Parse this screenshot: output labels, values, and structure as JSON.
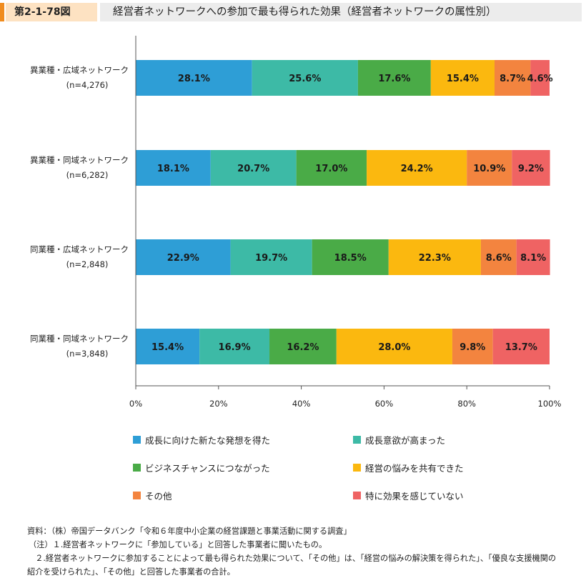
{
  "header": {
    "figure_number": "第2-1-78図",
    "title": "経営者ネットワークへの参加で最も得られた効果（経営者ネットワークの属性別）"
  },
  "chart_data": {
    "type": "bar",
    "orientation": "horizontal",
    "stacked": true,
    "title": "",
    "xlabel": "",
    "ylabel": "",
    "xlim": [
      0,
      100
    ],
    "x_ticks": [
      "0%",
      "20%",
      "40%",
      "60%",
      "80%",
      "100%"
    ],
    "grid": false,
    "legend_position": "bottom",
    "categories": [
      {
        "label": "異業種・広域ネットワーク",
        "n": "(n=4,276)"
      },
      {
        "label": "異業種・同域ネットワーク",
        "n": "(n=6,282)"
      },
      {
        "label": "同業種・広域ネットワーク",
        "n": "(n=2,848)"
      },
      {
        "label": "同業種・同域ネットワーク",
        "n": "(n=3,848)"
      }
    ],
    "series": [
      {
        "name": "成長に向けた新たな発想を得た",
        "color": "#2e9ed6",
        "values": [
          28.1,
          18.1,
          22.9,
          15.4
        ],
        "labels": [
          "28.1%",
          "18.1%",
          "22.9%",
          "15.4%"
        ]
      },
      {
        "name": "成長意欲が高まった",
        "color": "#3dbaa6",
        "values": [
          25.6,
          20.7,
          19.7,
          16.9
        ],
        "labels": [
          "25.6%",
          "20.7%",
          "19.7%",
          "16.9%"
        ]
      },
      {
        "name": "ビジネスチャンスにつながった",
        "color": "#4aab47",
        "values": [
          17.6,
          17.0,
          18.5,
          16.2
        ],
        "labels": [
          "17.6%",
          "17.0%",
          "18.5%",
          "16.2%"
        ]
      },
      {
        "name": "経営の悩みを共有できた",
        "color": "#fbb80f",
        "values": [
          15.4,
          24.2,
          22.3,
          28.0
        ],
        "labels": [
          "15.4%",
          "24.2%",
          "22.3%",
          "28.0%"
        ]
      },
      {
        "name": "その他",
        "color": "#f3843f",
        "values": [
          8.7,
          10.9,
          8.6,
          9.8
        ],
        "labels": [
          "8.7%",
          "10.9%",
          "8.6%",
          "9.8%"
        ]
      },
      {
        "name": "特に効果を感じていない",
        "color": "#ef6363",
        "values": [
          4.6,
          9.2,
          8.1,
          13.7
        ],
        "labels": [
          "4.6%",
          "9.2%",
          "8.1%",
          "13.7%"
        ]
      }
    ]
  },
  "notes": [
    "資料：（株）帝国データバンク「令和６年度中小企業の経営課題と事業活動に関する調査」",
    "（注）１.経営者ネットワークに「参加している」と回答した事業者に聞いたもの。",
    "　２.経営者ネットワークに参加することによって最も得られた効果について、「その他」は、「経営の悩みの解決策を得られた」、「優良な支援機関の",
    "紹介を受けられた」、「その他」と回答した事業者の合計。"
  ]
}
